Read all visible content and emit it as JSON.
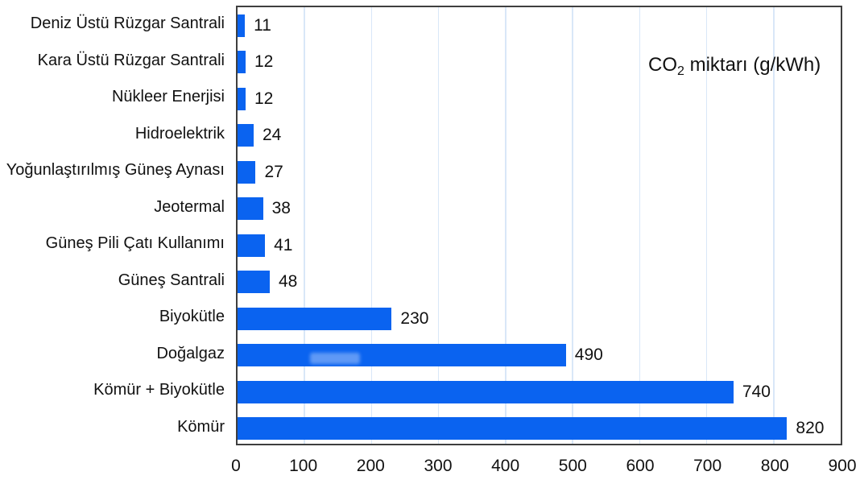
{
  "figure": {
    "background": "#ffffff"
  },
  "chart_data": {
    "type": "bar",
    "orientation": "horizontal",
    "title": {
      "prefix": "CO",
      "sub": "2",
      "suffix": " miktarı (g/kWh)"
    },
    "categories": [
      "Deniz Üstü Rüzgar Santrali",
      "Kara Üstü Rüzgar Santrali",
      "Nükleer Enerjisi",
      "Hidroelektrik",
      "Yoğunlaştırılmış Güneş Aynası",
      "Jeotermal",
      "Güneş Pili Çatı Kullanımı",
      "Güneş Santrali",
      "Biyokütle",
      "Doğalgaz",
      "Kömür + Biyokütle",
      "Kömür"
    ],
    "values": [
      11,
      12,
      12,
      24,
      27,
      38,
      41,
      48,
      230,
      490,
      740,
      820
    ],
    "value_labels": [
      "11",
      "12",
      "12",
      "24",
      "27",
      "38",
      "41",
      "48",
      "230",
      "490",
      "740",
      "820"
    ],
    "xlim": [
      0,
      900
    ],
    "x_ticks": [
      0,
      100,
      200,
      300,
      400,
      500,
      600,
      700,
      800,
      900
    ],
    "x_tick_labels": [
      "0",
      "100",
      "200",
      "300",
      "400",
      "500",
      "600",
      "700",
      "800",
      "900"
    ],
    "grid": "vertical-on",
    "legend": "none",
    "bar_color": "#0a63f0",
    "grid_color": "#d9e7f8",
    "border_color": "#3f3f3f",
    "text_color": "#111111"
  }
}
